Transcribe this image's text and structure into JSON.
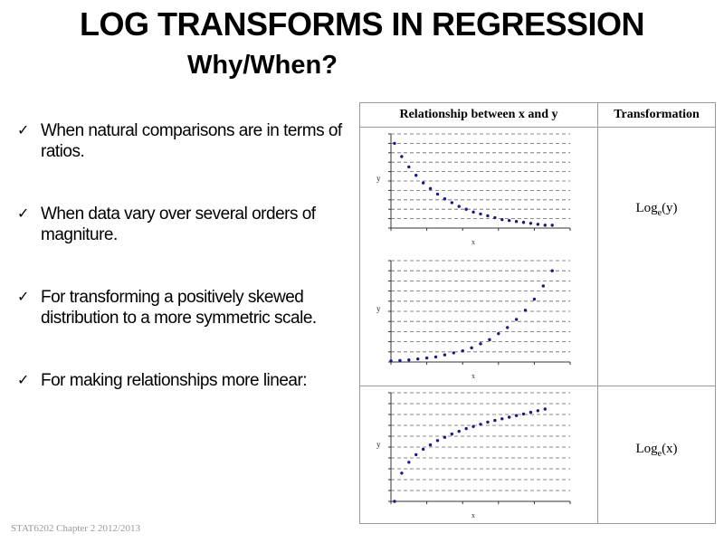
{
  "slide": {
    "title": "LOG TRANSFORMS IN REGRESSION",
    "subtitle": "Why/When?",
    "bullets": [
      "When natural comparisons are in terms of ratios.",
      "When data vary over several orders of magniture.",
      "For transforming a positively skewed distribution to a more symmetric scale.",
      "For making relationships more linear:"
    ],
    "bullet_marker": "✓",
    "footer": "STAT6202  Chapter 2 2012/2013"
  },
  "table": {
    "header_relationship": "Relationship between x and y",
    "header_transformation": "Transformation",
    "rows": [
      {
        "transformation": "Loge(y)",
        "base": "Log",
        "sub": "e",
        "arg": "(y)"
      },
      {
        "transformation": "",
        "base": "",
        "sub": "",
        "arg": ""
      },
      {
        "transformation": "Loge(x)",
        "base": "Log",
        "sub": "e",
        "arg": "(x)"
      }
    ]
  },
  "chart_data": [
    {
      "type": "scatter",
      "title": "",
      "xlabel": "x",
      "ylabel": "y",
      "shape": "decaying",
      "x": [
        0.2,
        0.6,
        1.0,
        1.4,
        1.8,
        2.2,
        2.6,
        3.0,
        3.4,
        3.8,
        4.2,
        4.6,
        5.0,
        5.4,
        5.8,
        6.2,
        6.6,
        7.0,
        7.4,
        7.8,
        8.2,
        8.6,
        9.0
      ],
      "y": [
        9.0,
        7.6,
        6.5,
        5.6,
        4.8,
        4.2,
        3.6,
        3.1,
        2.7,
        2.3,
        2.0,
        1.7,
        1.5,
        1.3,
        1.1,
        0.9,
        0.8,
        0.7,
        0.6,
        0.5,
        0.4,
        0.3,
        0.3
      ],
      "xlim": [
        0,
        10
      ],
      "ylim": [
        0,
        10
      ]
    },
    {
      "type": "scatter",
      "title": "",
      "xlabel": "x",
      "ylabel": "y",
      "shape": "exponential",
      "x": [
        0.0,
        0.5,
        1.0,
        1.5,
        2.0,
        2.5,
        3.0,
        3.5,
        4.0,
        4.5,
        5.0,
        5.5,
        6.0,
        6.5,
        7.0,
        7.5,
        8.0,
        8.5,
        9.0
      ],
      "y": [
        0.1,
        0.15,
        0.2,
        0.3,
        0.4,
        0.5,
        0.7,
        0.9,
        1.1,
        1.4,
        1.8,
        2.2,
        2.8,
        3.4,
        4.2,
        5.1,
        6.2,
        7.5,
        9.0
      ],
      "xlim": [
        0,
        10
      ],
      "ylim": [
        0,
        10
      ]
    },
    {
      "type": "scatter",
      "title": "",
      "xlabel": "x",
      "ylabel": "y",
      "shape": "logarithmic",
      "x": [
        0.2,
        0.6,
        1.0,
        1.4,
        1.8,
        2.2,
        2.6,
        3.0,
        3.4,
        3.8,
        4.2,
        4.6,
        5.0,
        5.4,
        5.8,
        6.2,
        6.6,
        7.0,
        7.4,
        7.8,
        8.2,
        8.6
      ],
      "y": [
        0.0,
        2.6,
        3.6,
        4.3,
        4.8,
        5.2,
        5.6,
        5.9,
        6.2,
        6.45,
        6.7,
        6.9,
        7.1,
        7.3,
        7.45,
        7.6,
        7.75,
        7.9,
        8.05,
        8.2,
        8.35,
        8.5
      ],
      "xlim": [
        0,
        10
      ],
      "ylim": [
        0,
        10
      ]
    }
  ]
}
